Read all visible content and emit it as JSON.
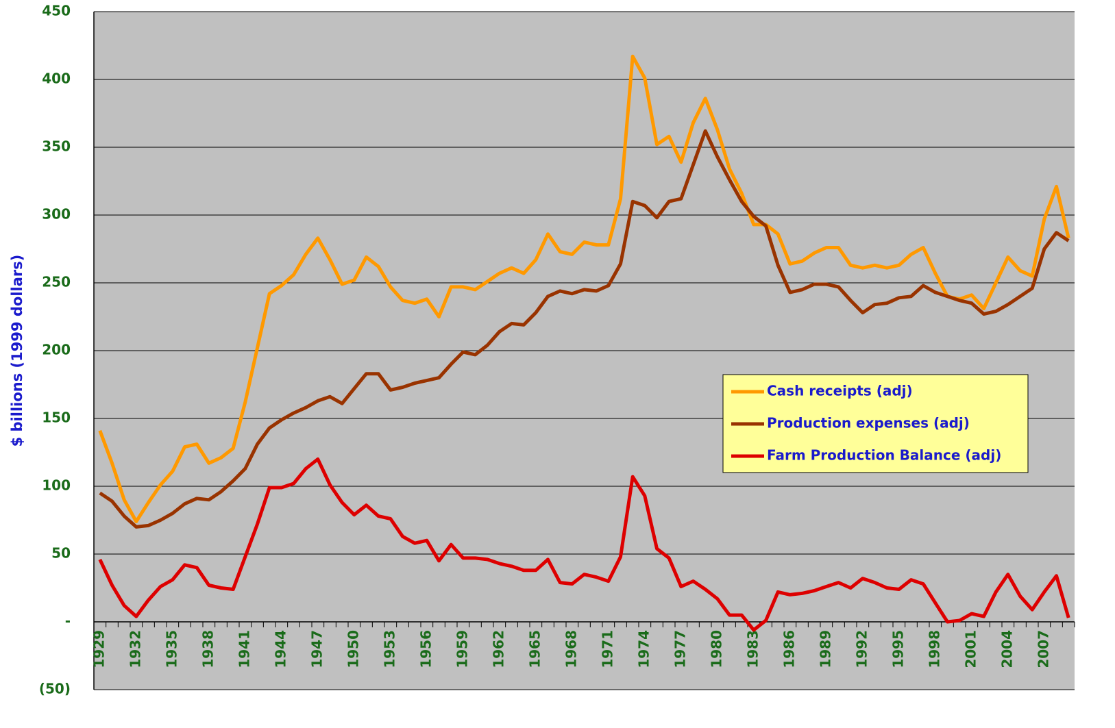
{
  "chart_data": {
    "type": "line",
    "y_label": "$ billions (1999 dollars)",
    "categories": [
      "1929",
      null,
      null,
      "1932",
      null,
      null,
      "1935",
      null,
      null,
      "1938",
      null,
      null,
      "1941",
      null,
      null,
      "1944",
      null,
      null,
      "1947",
      null,
      null,
      "1950",
      null,
      null,
      "1953",
      null,
      null,
      "1956",
      null,
      null,
      "1959",
      null,
      null,
      "1962",
      null,
      null,
      "1965",
      null,
      null,
      "1968",
      null,
      null,
      "1971",
      null,
      null,
      "1974",
      null,
      null,
      "1977",
      null,
      null,
      "1980",
      null,
      null,
      "1983",
      null,
      null,
      "1986",
      null,
      null,
      "1989",
      null,
      null,
      "1992",
      null,
      null,
      "1995",
      null,
      null,
      "1998",
      null,
      null,
      "2001",
      null,
      null,
      "2004",
      null,
      null,
      "2007",
      null,
      null
    ],
    "series": [
      {
        "name": "Cash receipts (adj)",
        "color": "#ff9900",
        "values": [
          141,
          117,
          90,
          74,
          88,
          101,
          111,
          129,
          131,
          117,
          121,
          128,
          162,
          202,
          242,
          248,
          256,
          271,
          283,
          267,
          249,
          252,
          269,
          262,
          247,
          237,
          235,
          238,
          225,
          247,
          247,
          245,
          251,
          257,
          261,
          257,
          267,
          286,
          273,
          271,
          280,
          278,
          278,
          312,
          417,
          401,
          352,
          358,
          339,
          368,
          386,
          363,
          334,
          316,
          293,
          293,
          286,
          264,
          266,
          272,
          276,
          276,
          263,
          261,
          263,
          261,
          263,
          271,
          276,
          257,
          240,
          238,
          241,
          231,
          250,
          269,
          259,
          255,
          297,
          321,
          283
        ]
      },
      {
        "name": "Production expenses (adj)",
        "color": "#993300",
        "values": [
          95,
          89,
          78,
          70,
          71,
          75,
          80,
          87,
          91,
          90,
          96,
          104,
          113,
          131,
          143,
          149,
          154,
          158,
          163,
          166,
          161,
          172,
          183,
          183,
          171,
          173,
          176,
          178,
          180,
          190,
          199,
          197,
          204,
          214,
          220,
          219,
          228,
          240,
          244,
          242,
          245,
          244,
          248,
          264,
          310,
          307,
          298,
          310,
          312,
          337,
          362,
          343,
          326,
          310,
          299,
          292,
          263,
          243,
          245,
          249,
          249,
          247,
          237,
          228,
          234,
          235,
          239,
          240,
          248,
          243,
          240,
          237,
          235,
          227,
          229,
          234,
          240,
          246,
          275,
          287,
          281
        ]
      },
      {
        "name": "Farm Production Balance (adj)",
        "color": "#dd0000",
        "values": [
          46,
          27,
          12,
          4,
          16,
          26,
          31,
          42,
          40,
          27,
          25,
          24,
          48,
          72,
          99,
          99,
          102,
          113,
          120,
          101,
          88,
          79,
          86,
          78,
          76,
          63,
          58,
          60,
          45,
          57,
          47,
          47,
          46,
          43,
          41,
          38,
          38,
          46,
          29,
          28,
          35,
          33,
          30,
          48,
          107,
          93,
          54,
          47,
          26,
          30,
          24,
          17,
          5,
          5,
          -6,
          1,
          22,
          20,
          21,
          23,
          26,
          29,
          25,
          32,
          29,
          25,
          24,
          31,
          28,
          14,
          0,
          1,
          6,
          4,
          22,
          35,
          19,
          9,
          22,
          34,
          3
        ]
      }
    ],
    "ylim": [
      -50,
      450
    ],
    "yticks": [
      {
        "value": -50,
        "label": "(50)"
      },
      {
        "value": 0,
        "label": "-"
      },
      50,
      100,
      150,
      200,
      250,
      300,
      350,
      400,
      450
    ],
    "grid": true,
    "legend": "right"
  }
}
